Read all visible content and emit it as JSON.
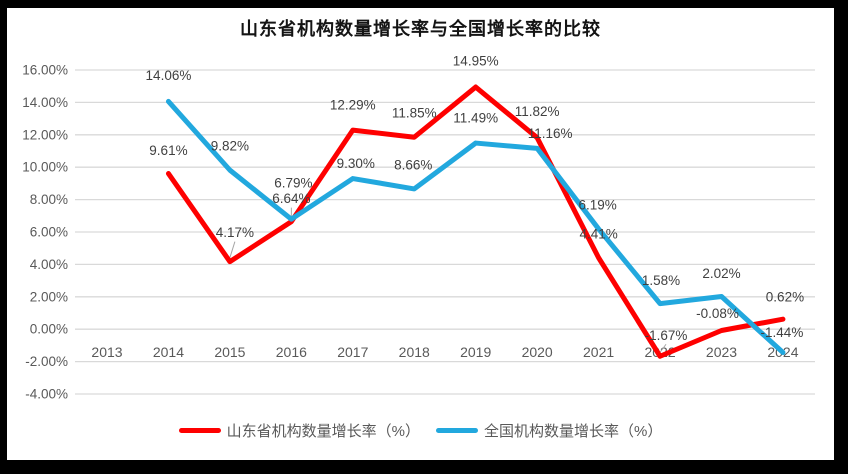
{
  "page": {
    "background_color": "#000000",
    "panel_color": "#FFFFFF"
  },
  "chart_data": {
    "type": "line",
    "title": "山东省机构数量增长率与全国增长率的比较",
    "categories": [
      "2013",
      "2014",
      "2015",
      "2016",
      "2017",
      "2018",
      "2019",
      "2020",
      "2021",
      "2022",
      "2023",
      "2024"
    ],
    "series": [
      {
        "name": "山东省机构数量增长率（%）",
        "color": "#FE0000",
        "values": [
          null,
          9.61,
          4.17,
          6.64,
          12.29,
          11.85,
          14.95,
          11.82,
          4.41,
          -1.67,
          -0.08,
          0.62
        ]
      },
      {
        "name": "全国机构数量增长率（%）",
        "color": "#22A8DE",
        "values": [
          null,
          14.06,
          9.82,
          6.79,
          9.3,
          8.66,
          11.49,
          11.16,
          6.19,
          1.58,
          2.02,
          -1.44
        ]
      }
    ],
    "y_axis": {
      "max": 16,
      "min": -4,
      "step": 2,
      "tick_labels": [
        "16.00%",
        "14.00%",
        "12.00%",
        "10.00%",
        "8.00%",
        "6.00%",
        "4.00%",
        "2.00%",
        "0.00%",
        "-2.00%",
        "-4.00%"
      ]
    },
    "grid": true,
    "legend_position": "bottom",
    "label_format": "0.00%",
    "colors": {
      "gridline": "#D9D9D9",
      "axis_tick_label": "#595959",
      "data_label": "#404040",
      "leader_line": "#A6A6A6",
      "title": "#141414"
    },
    "label_offsets": [
      [
        [
          0,
          0
        ],
        [
          0,
          -23
        ],
        [
          5,
          -29
        ],
        [
          0,
          -23
        ],
        [
          0,
          -25
        ],
        [
          0,
          -24
        ],
        [
          0,
          -26
        ],
        [
          0,
          -26
        ],
        [
          0,
          -24
        ],
        [
          6,
          -21
        ],
        [
          -4,
          -17
        ],
        [
          2,
          -22
        ]
      ],
      [
        [
          0,
          0
        ],
        [
          0,
          -26
        ],
        [
          0,
          -24
        ],
        [
          2,
          -36
        ],
        [
          3,
          -15
        ],
        [
          -1,
          -24
        ],
        [
          0,
          -25
        ],
        [
          13,
          -15
        ],
        [
          -1,
          -24
        ],
        [
          1,
          -23
        ],
        [
          0,
          -23
        ],
        [
          -1,
          -20
        ]
      ]
    ],
    "leader_lines": [
      {
        "series": 0,
        "index": 2
      },
      {
        "series": 0,
        "index": 3
      },
      {
        "series": 0,
        "index": 9
      }
    ]
  }
}
